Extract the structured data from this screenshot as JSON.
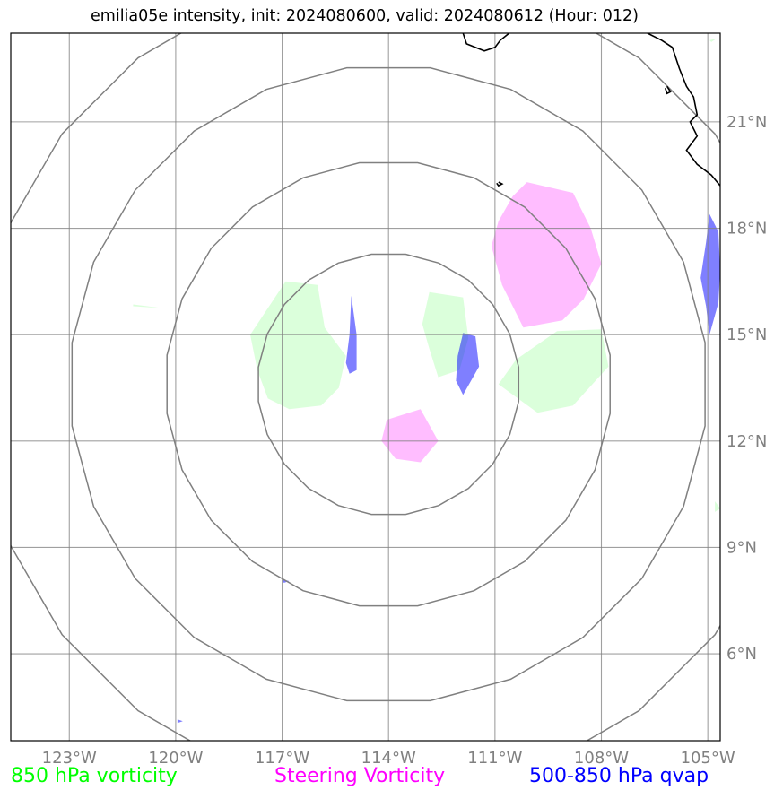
{
  "title": "emilia05e intensity, init: 2024080600, valid: 2024080612 (Hour: 012)",
  "colors": {
    "vorticity_850": "#00ff00",
    "steering_vorticity": "#ff00ff",
    "qvap": "#0000ff",
    "grid": "#808080",
    "coast": "#000000",
    "rings": "#808080"
  },
  "map": {
    "lon_range": [
      -124.65,
      -104.65
    ],
    "lat_range": [
      3.55,
      23.5
    ],
    "lon_ticks": [
      {
        "value": -123,
        "label": "123°W"
      },
      {
        "value": -120,
        "label": "120°W"
      },
      {
        "value": -117,
        "label": "117°W"
      },
      {
        "value": -114,
        "label": "114°W"
      },
      {
        "value": -111,
        "label": "111°W"
      },
      {
        "value": -108,
        "label": "108°W"
      },
      {
        "value": -105,
        "label": "105°W"
      }
    ],
    "lat_ticks": [
      {
        "value": 6,
        "label": "6°N"
      },
      {
        "value": 9,
        "label": "9°N"
      },
      {
        "value": 12,
        "label": "12°N"
      },
      {
        "value": 15,
        "label": "15°N"
      },
      {
        "value": 18,
        "label": "18°N"
      },
      {
        "value": 21,
        "label": "21°N"
      }
    ],
    "ring_center": [
      -114,
      13.6
    ],
    "ring_radii_deg": [
      3.7,
      6.3,
      9.0,
      11.6
    ]
  },
  "legend": {
    "vorticity_850": "850 hPa vorticity",
    "steering_vorticity": "Steering Vorticity",
    "qvap": "500-850 hPa qvap"
  },
  "fields": {
    "vorticity_850": [
      [
        [
          -116.9,
          16.5
        ],
        [
          -116.0,
          16.4
        ],
        [
          -115.8,
          15.2
        ],
        [
          -115.2,
          14.4
        ],
        [
          -115.4,
          13.5
        ],
        [
          -115.9,
          13.0
        ],
        [
          -116.8,
          12.9
        ],
        [
          -117.4,
          13.2
        ],
        [
          -117.7,
          14.0
        ],
        [
          -117.9,
          15.0
        ]
      ],
      [
        [
          -112.85,
          16.2
        ],
        [
          -111.9,
          16.05
        ],
        [
          -111.75,
          14.9
        ],
        [
          -112.0,
          14.0
        ],
        [
          -112.6,
          13.8
        ],
        [
          -112.85,
          14.6
        ],
        [
          -113.05,
          15.3
        ]
      ],
      [
        [
          -109.25,
          15.1
        ],
        [
          -108.0,
          15.15
        ],
        [
          -107.8,
          14.1
        ],
        [
          -108.8,
          13.0
        ],
        [
          -109.8,
          12.8
        ],
        [
          -110.9,
          13.6
        ],
        [
          -110.4,
          14.3
        ]
      ],
      [
        [
          -121.2,
          15.8
        ],
        [
          -120.4,
          15.75
        ],
        [
          -121.2,
          15.85
        ]
      ],
      [
        [
          -104.8,
          10.3
        ],
        [
          -104.65,
          10.1
        ],
        [
          -104.8,
          10.0
        ]
      ],
      [
        [
          -104.95,
          23.3
        ],
        [
          -104.75,
          23.35
        ],
        [
          -104.9,
          23.25
        ]
      ]
    ],
    "steering_vorticity": [
      [
        [
          -110.5,
          18.9
        ],
        [
          -110.1,
          19.3
        ],
        [
          -108.8,
          19.0
        ],
        [
          -108.3,
          18.0
        ],
        [
          -108.0,
          17.0
        ],
        [
          -108.5,
          16.0
        ],
        [
          -109.1,
          15.4
        ],
        [
          -110.2,
          15.2
        ],
        [
          -110.8,
          16.4
        ],
        [
          -111.1,
          17.5
        ],
        [
          -110.9,
          18.2
        ]
      ],
      [
        [
          -114.05,
          12.6
        ],
        [
          -113.1,
          12.9
        ],
        [
          -112.6,
          12.0
        ],
        [
          -113.1,
          11.4
        ],
        [
          -113.8,
          11.5
        ],
        [
          -114.2,
          12.0
        ]
      ],
      [
        [
          -114.05,
          12.6
        ],
        [
          -114.1,
          12.55
        ],
        [
          -114.05,
          12.6
        ]
      ]
    ],
    "qvap": [
      [
        [
          -115.05,
          16.1
        ],
        [
          -114.9,
          15.0
        ],
        [
          -114.9,
          14.0
        ],
        [
          -115.1,
          13.9
        ],
        [
          -115.2,
          14.2
        ],
        [
          -115.1,
          15.0
        ]
      ],
      [
        [
          -111.9,
          15.05
        ],
        [
          -111.55,
          14.95
        ],
        [
          -111.45,
          14.1
        ],
        [
          -111.9,
          13.3
        ],
        [
          -112.1,
          13.7
        ],
        [
          -112.05,
          14.4
        ]
      ],
      [
        [
          -104.95,
          18.4
        ],
        [
          -104.7,
          17.9
        ],
        [
          -104.65,
          16.8
        ],
        [
          -104.7,
          15.9
        ],
        [
          -104.95,
          15.0
        ],
        [
          -105.05,
          15.8
        ],
        [
          -105.2,
          16.6
        ],
        [
          -105.05,
          17.6
        ]
      ],
      [
        [
          -118.05,
          11.7
        ],
        [
          -118.0,
          11.6
        ],
        [
          -118.05,
          11.7
        ]
      ],
      [
        [
          -117.0,
          8.1
        ],
        [
          -116.8,
          8.05
        ],
        [
          -116.95,
          8.0
        ]
      ],
      [
        [
          -119.95,
          4.15
        ],
        [
          -119.8,
          4.1
        ],
        [
          -119.95,
          4.05
        ]
      ]
    ]
  },
  "coastlines": [
    [
      [
        -111.9,
        23.5
      ],
      [
        -111.8,
        23.2
      ],
      [
        -111.3,
        23.0
      ],
      [
        -111.0,
        23.1
      ],
      [
        -110.85,
        23.3
      ],
      [
        -110.6,
        23.5
      ]
    ],
    [
      [
        -106.7,
        23.5
      ],
      [
        -106.3,
        23.3
      ],
      [
        -106.0,
        23.1
      ],
      [
        -105.8,
        22.5
      ],
      [
        -105.6,
        22.0
      ],
      [
        -105.4,
        21.7
      ],
      [
        -105.3,
        21.2
      ],
      [
        -105.5,
        21.0
      ],
      [
        -105.3,
        20.6
      ],
      [
        -105.6,
        20.2
      ],
      [
        -105.3,
        19.8
      ],
      [
        -104.9,
        19.5
      ],
      [
        -104.65,
        19.2
      ]
    ],
    [
      [
        -106.15,
        22.0
      ],
      [
        -106.05,
        21.85
      ],
      [
        -106.15,
        21.8
      ],
      [
        -106.2,
        21.95
      ]
    ],
    [
      [
        -110.9,
        19.3
      ],
      [
        -110.8,
        19.25
      ],
      [
        -110.9,
        19.2
      ],
      [
        -110.95,
        19.27
      ]
    ]
  ]
}
